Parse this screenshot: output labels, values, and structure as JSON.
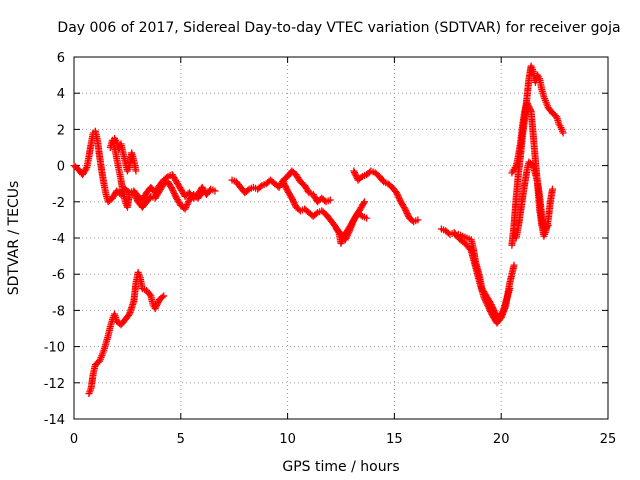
{
  "chart_data": {
    "type": "scatter",
    "title": "Day 006 of 2017, Sidereal Day-to-day VTEC variation (SDTVAR) for receiver goja",
    "xlabel": "GPS time / hours",
    "ylabel": "SDTVAR / TECUs",
    "xlim": [
      0,
      25
    ],
    "ylim": [
      -14,
      6
    ],
    "xticks": [
      0,
      5,
      10,
      15,
      20,
      25
    ],
    "yticks": [
      -14,
      -12,
      -10,
      -8,
      -6,
      -4,
      -2,
      0,
      2,
      4,
      6
    ],
    "grid": true,
    "marker": "plus",
    "series_color": "#ff0000",
    "segments": [
      [
        [
          0.0,
          0.0
        ],
        [
          0.2,
          -0.2
        ],
        [
          0.4,
          -0.5
        ],
        [
          0.6,
          -0.1
        ],
        [
          0.7,
          0.5
        ],
        [
          0.8,
          1.2
        ],
        [
          0.9,
          1.8
        ],
        [
          1.0,
          1.9
        ],
        [
          1.1,
          1.4
        ],
        [
          1.2,
          0.5
        ],
        [
          1.3,
          -0.3
        ],
        [
          1.4,
          -1.0
        ],
        [
          1.5,
          -1.6
        ],
        [
          1.6,
          -2.0
        ],
        [
          1.8,
          -1.8
        ],
        [
          2.0,
          -1.4
        ],
        [
          2.2,
          -1.6
        ],
        [
          2.4,
          -1.3
        ],
        [
          2.6,
          -1.5
        ],
        [
          2.8,
          -1.4
        ],
        [
          3.0,
          -1.7
        ],
        [
          3.2,
          -1.9
        ],
        [
          3.4,
          -1.5
        ],
        [
          3.6,
          -1.2
        ],
        [
          3.8,
          -1.5
        ],
        [
          4.0,
          -1.1
        ],
        [
          4.2,
          -0.8
        ],
        [
          4.4,
          -0.6
        ],
        [
          4.6,
          -0.5
        ],
        [
          4.8,
          -0.9
        ],
        [
          5.0,
          -1.3
        ],
        [
          5.2,
          -1.7
        ],
        [
          5.4,
          -1.5
        ],
        [
          5.6,
          -1.8
        ],
        [
          5.8,
          -1.6
        ],
        [
          6.0,
          -1.2
        ],
        [
          6.2,
          -1.6
        ],
        [
          6.4,
          -1.3
        ],
        [
          6.6,
          -1.4
        ]
      ],
      [
        [
          1.7,
          1.0
        ],
        [
          1.8,
          1.4
        ],
        [
          1.9,
          1.0
        ],
        [
          2.0,
          0.4
        ],
        [
          2.1,
          -0.2
        ],
        [
          2.2,
          -0.8
        ],
        [
          2.3,
          -1.5
        ],
        [
          2.4,
          -2.0
        ],
        [
          2.5,
          -2.3
        ],
        [
          2.6,
          -1.6
        ]
      ],
      [
        [
          1.9,
          1.5
        ],
        [
          2.0,
          1.3
        ],
        [
          2.1,
          0.9
        ],
        [
          2.2,
          1.2
        ],
        [
          2.3,
          0.7
        ],
        [
          2.4,
          0.2
        ],
        [
          2.5,
          -0.3
        ],
        [
          2.6,
          0.0
        ],
        [
          2.7,
          0.7
        ],
        [
          2.8,
          0.3
        ],
        [
          2.9,
          -0.3
        ]
      ],
      [
        [
          2.8,
          -1.5
        ],
        [
          3.0,
          -2.0
        ],
        [
          3.2,
          -2.3
        ],
        [
          3.4,
          -2.0
        ],
        [
          3.6,
          -1.7
        ],
        [
          3.8,
          -1.8
        ],
        [
          4.0,
          -1.4
        ],
        [
          4.2,
          -1.0
        ],
        [
          4.4,
          -0.9
        ],
        [
          4.6,
          -1.3
        ],
        [
          4.8,
          -1.8
        ],
        [
          5.0,
          -2.2
        ],
        [
          5.2,
          -2.4
        ],
        [
          5.4,
          -1.9
        ],
        [
          5.6,
          -1.6
        ],
        [
          5.8,
          -1.8
        ],
        [
          6.0,
          -1.5
        ]
      ],
      [
        [
          0.7,
          -12.6
        ],
        [
          0.8,
          -12.3
        ],
        [
          0.9,
          -11.5
        ],
        [
          1.0,
          -11.0
        ],
        [
          1.2,
          -10.8
        ],
        [
          1.3,
          -10.5
        ],
        [
          1.4,
          -10.2
        ],
        [
          1.5,
          -9.8
        ],
        [
          1.6,
          -9.4
        ],
        [
          1.7,
          -8.9
        ],
        [
          1.8,
          -8.5
        ],
        [
          1.9,
          -8.2
        ],
        [
          2.0,
          -8.6
        ],
        [
          2.2,
          -8.8
        ],
        [
          2.4,
          -8.5
        ],
        [
          2.6,
          -8.2
        ],
        [
          2.8,
          -7.5
        ],
        [
          2.9,
          -6.5
        ],
        [
          3.0,
          -5.9
        ],
        [
          3.1,
          -6.2
        ],
        [
          3.2,
          -6.8
        ],
        [
          3.4,
          -6.9
        ],
        [
          3.6,
          -7.2
        ],
        [
          3.7,
          -7.7
        ],
        [
          3.8,
          -7.9
        ],
        [
          4.0,
          -7.4
        ],
        [
          4.2,
          -7.2
        ]
      ],
      [
        [
          7.4,
          -0.8
        ],
        [
          7.6,
          -0.9
        ],
        [
          7.8,
          -1.2
        ],
        [
          8.0,
          -1.5
        ],
        [
          8.2,
          -1.3
        ],
        [
          8.4,
          -1.2
        ],
        [
          8.6,
          -1.3
        ],
        [
          8.8,
          -1.1
        ],
        [
          9.0,
          -1.0
        ],
        [
          9.2,
          -0.8
        ],
        [
          9.4,
          -1.0
        ],
        [
          9.6,
          -1.2
        ],
        [
          9.8,
          -0.8
        ],
        [
          10.0,
          -0.6
        ],
        [
          10.2,
          -0.3
        ],
        [
          10.4,
          -0.5
        ],
        [
          10.6,
          -0.9
        ],
        [
          10.8,
          -1.1
        ],
        [
          11.0,
          -1.5
        ],
        [
          11.2,
          -1.6
        ],
        [
          11.4,
          -2.0
        ],
        [
          11.6,
          -1.8
        ],
        [
          11.8,
          -2.0
        ],
        [
          12.0,
          -1.9
        ]
      ],
      [
        [
          9.8,
          -0.9
        ],
        [
          10.0,
          -1.4
        ],
        [
          10.2,
          -1.8
        ],
        [
          10.4,
          -2.3
        ],
        [
          10.6,
          -2.5
        ],
        [
          10.8,
          -2.4
        ],
        [
          11.0,
          -2.6
        ],
        [
          11.2,
          -2.8
        ],
        [
          11.4,
          -2.6
        ],
        [
          11.6,
          -2.5
        ],
        [
          11.8,
          -2.7
        ],
        [
          12.0,
          -3.0
        ],
        [
          12.2,
          -3.3
        ],
        [
          12.4,
          -3.7
        ],
        [
          12.5,
          -4.3
        ],
        [
          12.6,
          -3.9
        ],
        [
          12.8,
          -3.6
        ],
        [
          13.0,
          -3.2
        ],
        [
          13.2,
          -2.8
        ],
        [
          13.4,
          -2.4
        ],
        [
          13.6,
          -2.0
        ]
      ],
      [
        [
          12.3,
          -3.5
        ],
        [
          12.5,
          -3.8
        ],
        [
          12.7,
          -4.1
        ],
        [
          12.9,
          -3.6
        ],
        [
          13.1,
          -3.0
        ],
        [
          13.3,
          -2.6
        ],
        [
          13.5,
          -2.8
        ],
        [
          13.7,
          -2.9
        ]
      ],
      [
        [
          13.1,
          -0.3
        ],
        [
          13.3,
          -0.8
        ],
        [
          13.5,
          -0.6
        ],
        [
          13.7,
          -0.5
        ],
        [
          13.9,
          -0.3
        ],
        [
          14.1,
          -0.4
        ],
        [
          14.3,
          -0.6
        ],
        [
          14.5,
          -0.9
        ],
        [
          14.7,
          -1.0
        ],
        [
          14.9,
          -1.2
        ],
        [
          15.1,
          -1.5
        ],
        [
          15.3,
          -2.0
        ],
        [
          15.5,
          -2.4
        ],
        [
          15.7,
          -2.9
        ],
        [
          15.9,
          -3.1
        ],
        [
          16.1,
          -3.0
        ]
      ],
      [
        [
          17.2,
          -3.5
        ],
        [
          17.4,
          -3.6
        ],
        [
          17.6,
          -3.8
        ],
        [
          17.8,
          -3.7
        ],
        [
          18.0,
          -4.0
        ],
        [
          18.2,
          -4.2
        ],
        [
          18.4,
          -4.4
        ],
        [
          18.6,
          -4.7
        ],
        [
          18.8,
          -5.6
        ],
        [
          19.0,
          -6.5
        ],
        [
          19.2,
          -7.3
        ],
        [
          19.4,
          -7.8
        ],
        [
          19.6,
          -8.3
        ],
        [
          19.8,
          -8.7
        ],
        [
          20.0,
          -8.4
        ],
        [
          20.2,
          -7.8
        ],
        [
          20.4,
          -6.5
        ],
        [
          20.6,
          -5.5
        ]
      ],
      [
        [
          18.0,
          -3.8
        ],
        [
          18.2,
          -3.9
        ],
        [
          18.4,
          -4.0
        ],
        [
          18.6,
          -4.1
        ],
        [
          18.7,
          -4.6
        ],
        [
          18.8,
          -5.3
        ],
        [
          19.0,
          -6.2
        ],
        [
          19.1,
          -6.8
        ],
        [
          19.3,
          -7.2
        ],
        [
          19.5,
          -7.6
        ],
        [
          19.7,
          -8.1
        ],
        [
          19.9,
          -8.5
        ],
        [
          20.1,
          -8.0
        ],
        [
          20.3,
          -7.2
        ],
        [
          20.4,
          -6.8
        ]
      ],
      [
        [
          20.5,
          -4.4
        ],
        [
          20.6,
          -3.3
        ],
        [
          20.7,
          -1.8
        ],
        [
          20.8,
          -0.5
        ],
        [
          20.9,
          0.5
        ],
        [
          21.0,
          1.7
        ],
        [
          21.1,
          2.6
        ],
        [
          21.2,
          3.7
        ],
        [
          21.3,
          4.8
        ],
        [
          21.4,
          5.5
        ],
        [
          21.5,
          5.2
        ],
        [
          21.6,
          4.6
        ],
        [
          21.7,
          5.0
        ],
        [
          21.8,
          4.8
        ],
        [
          21.9,
          4.2
        ],
        [
          22.0,
          3.8
        ],
        [
          22.1,
          3.5
        ],
        [
          22.2,
          3.2
        ],
        [
          22.4,
          2.9
        ],
        [
          22.6,
          2.7
        ],
        [
          22.7,
          2.3
        ],
        [
          22.8,
          2.1
        ],
        [
          22.9,
          1.8
        ]
      ],
      [
        [
          20.5,
          -0.4
        ],
        [
          20.6,
          -0.2
        ],
        [
          20.7,
          0.0
        ],
        [
          20.8,
          0.5
        ],
        [
          20.9,
          1.2
        ],
        [
          21.0,
          2.2
        ],
        [
          21.1,
          3.0
        ],
        [
          21.2,
          3.5
        ],
        [
          21.4,
          3.0
        ],
        [
          21.5,
          1.7
        ],
        [
          21.6,
          0.3
        ],
        [
          21.7,
          -1.0
        ],
        [
          21.8,
          -2.4
        ],
        [
          21.9,
          -3.3
        ],
        [
          22.0,
          -3.9
        ],
        [
          22.1,
          -3.6
        ],
        [
          22.2,
          -3.0
        ],
        [
          22.3,
          -2.0
        ],
        [
          22.4,
          -1.3
        ]
      ],
      [
        [
          20.7,
          -4.0
        ],
        [
          20.8,
          -3.4
        ],
        [
          20.9,
          -2.6
        ],
        [
          21.0,
          -1.8
        ],
        [
          21.1,
          -1.0
        ],
        [
          21.2,
          -0.3
        ],
        [
          21.3,
          0.2
        ],
        [
          21.5,
          0.0
        ],
        [
          21.7,
          -0.9
        ],
        [
          21.8,
          -1.7
        ],
        [
          21.9,
          -2.8
        ],
        [
          22.0,
          -3.6
        ],
        [
          22.2,
          -3.3
        ]
      ]
    ]
  }
}
